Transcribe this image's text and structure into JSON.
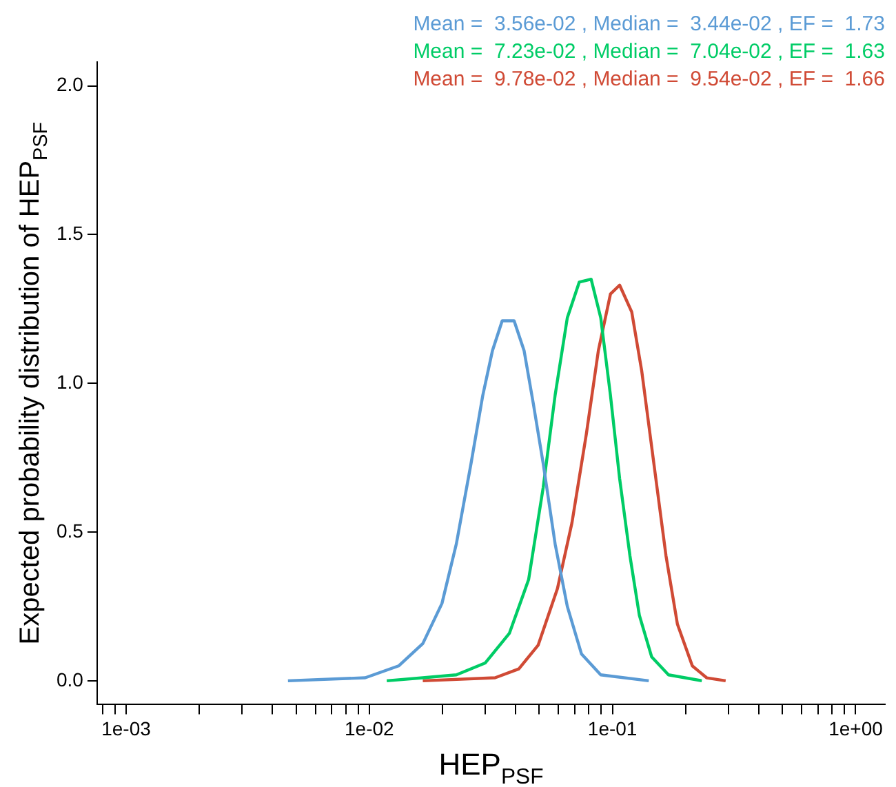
{
  "chart_data": {
    "type": "line",
    "xlabel": "HEP$_{PSF}$",
    "ylabel": "Expected probability distribution of HEP$_{PSF}$",
    "log": "x",
    "grid": false,
    "legend": "top right",
    "marker": "none",
    "line_style": "solid",
    "xlim": [
      0.00076,
      1.32
    ],
    "xticks": [
      {
        "value": 0.0008,
        "label": null
      },
      {
        "value": 0.0009,
        "label": null
      },
      {
        "value": 0.001,
        "label": "1e-03"
      },
      {
        "value": 0.002,
        "label": null
      },
      {
        "value": 0.003,
        "label": null
      },
      {
        "value": 0.004,
        "label": null
      },
      {
        "value": 0.005,
        "label": null
      },
      {
        "value": 0.006,
        "label": null
      },
      {
        "value": 0.007,
        "label": null
      },
      {
        "value": 0.008,
        "label": null
      },
      {
        "value": 0.009,
        "label": null
      },
      {
        "value": 0.01,
        "label": "1e-02"
      },
      {
        "value": 0.02,
        "label": null
      },
      {
        "value": 0.03,
        "label": null
      },
      {
        "value": 0.04,
        "label": null
      },
      {
        "value": 0.05,
        "label": null
      },
      {
        "value": 0.06,
        "label": null
      },
      {
        "value": 0.07,
        "label": null
      },
      {
        "value": 0.08,
        "label": null
      },
      {
        "value": 0.09,
        "label": null
      },
      {
        "value": 0.1,
        "label": "1e-01"
      },
      {
        "value": 0.2,
        "label": null
      },
      {
        "value": 0.3,
        "label": null
      },
      {
        "value": 0.4,
        "label": null
      },
      {
        "value": 0.5,
        "label": null
      },
      {
        "value": 0.6,
        "label": null
      },
      {
        "value": 0.7,
        "label": null
      },
      {
        "value": 0.8,
        "label": null
      },
      {
        "value": 0.9,
        "label": null
      },
      {
        "value": 1,
        "label": "1e+00"
      }
    ],
    "ylim": [
      -0.08,
      2.08
    ],
    "yticks": [
      {
        "value": 0,
        "label": "0.0"
      },
      0.5,
      {
        "value": 1,
        "label": "1.0"
      },
      1.5,
      {
        "value": 2,
        "label": "2.0"
      }
    ],
    "series": [
      {
        "name": "Mean =  3.56e-02 , Median =  3.44e-02 , EF =  1.73",
        "color": "#5b9bd5",
        "x": [
          0.00463,
          0.00962,
          0.0132,
          0.0166,
          0.0199,
          0.0228,
          0.0262,
          0.0293,
          0.0321,
          0.0352,
          0.0394,
          0.0433,
          0.0473,
          0.0519,
          0.0581,
          0.0652,
          0.0746,
          0.0895,
          0.141
        ],
        "values": [
          0,
          0.01,
          0.05,
          0.125,
          0.26,
          0.46,
          0.73,
          0.96,
          1.11,
          1.21,
          1.21,
          1.11,
          0.93,
          0.73,
          0.46,
          0.25,
          0.09,
          0.02,
          0
        ]
      },
      {
        "name": "Mean =  7.23e-02 , Median =  7.04e-02 , EF =  1.63",
        "color": "#00cc66",
        "x": [
          0.0118,
          0.0166,
          0.0228,
          0.03,
          0.0377,
          0.0452,
          0.0519,
          0.0581,
          0.0652,
          0.073,
          0.0817,
          0.0895,
          0.0981,
          0.107,
          0.118,
          0.129,
          0.145,
          0.17,
          0.233
        ],
        "values": [
          0,
          0.01,
          0.02,
          0.06,
          0.16,
          0.34,
          0.65,
          0.96,
          1.22,
          1.34,
          1.35,
          1.22,
          0.96,
          0.68,
          0.42,
          0.22,
          0.08,
          0.02,
          0
        ]
      },
      {
        "name": "Mean =  9.78e-02 , Median =  9.54e-02 , EF =  1.66",
        "color": "#d04a35",
        "x": [
          0.0166,
          0.0329,
          0.0412,
          0.0495,
          0.0594,
          0.0681,
          0.0781,
          0.0875,
          0.0981,
          0.107,
          0.12,
          0.132,
          0.148,
          0.166,
          0.185,
          0.213,
          0.244,
          0.292
        ],
        "values": [
          0,
          0.01,
          0.04,
          0.12,
          0.31,
          0.53,
          0.83,
          1.11,
          1.3,
          1.33,
          1.24,
          1.04,
          0.73,
          0.42,
          0.19,
          0.05,
          0.01,
          0
        ]
      }
    ]
  }
}
